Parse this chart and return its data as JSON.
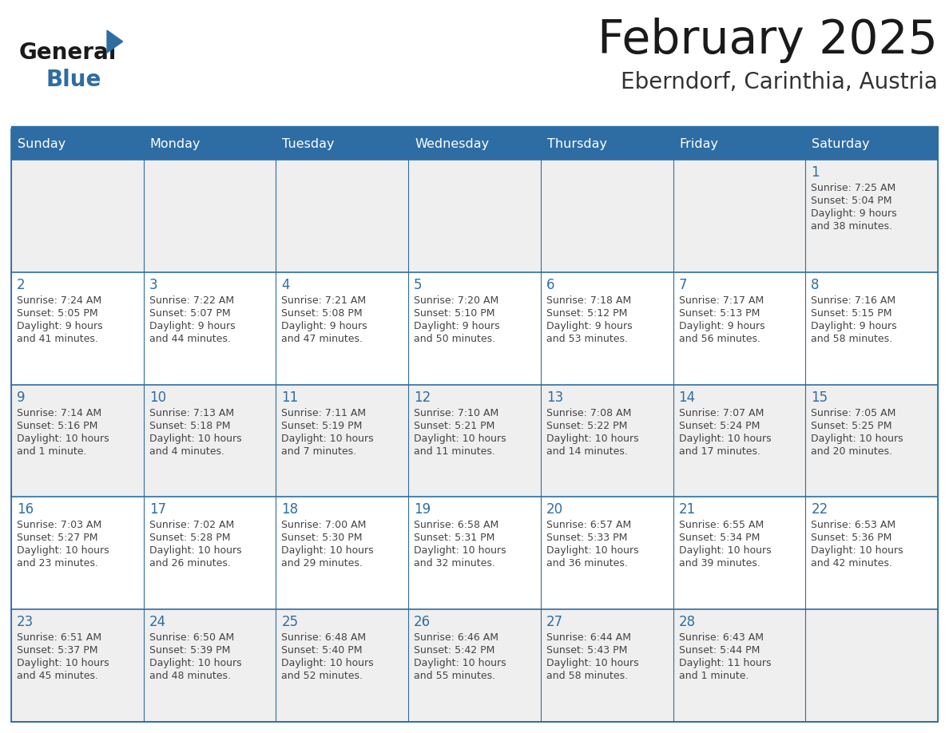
{
  "title": "February 2025",
  "subtitle": "Eberndorf, Carinthia, Austria",
  "header_bg": "#2E6DA4",
  "header_text_color": "#FFFFFF",
  "cell_bg_odd": "#EFEFEF",
  "cell_bg_even": "#FFFFFF",
  "border_color": "#2E6DA4",
  "day_headers": [
    "Sunday",
    "Monday",
    "Tuesday",
    "Wednesday",
    "Thursday",
    "Friday",
    "Saturday"
  ],
  "title_color": "#1a1a1a",
  "subtitle_color": "#333333",
  "day_number_color": "#2E6DA4",
  "info_color": "#444444",
  "logo_general_color": "#1a1a1a",
  "logo_blue_color": "#2E6DA4",
  "logo_triangle_color": "#2E6DA4",
  "days": [
    {
      "day": 1,
      "col": 6,
      "row": 0,
      "sunrise": "7:25 AM",
      "sunset": "5:04 PM",
      "daylight_line1": "Daylight: 9 hours",
      "daylight_line2": "and 38 minutes."
    },
    {
      "day": 2,
      "col": 0,
      "row": 1,
      "sunrise": "7:24 AM",
      "sunset": "5:05 PM",
      "daylight_line1": "Daylight: 9 hours",
      "daylight_line2": "and 41 minutes."
    },
    {
      "day": 3,
      "col": 1,
      "row": 1,
      "sunrise": "7:22 AM",
      "sunset": "5:07 PM",
      "daylight_line1": "Daylight: 9 hours",
      "daylight_line2": "and 44 minutes."
    },
    {
      "day": 4,
      "col": 2,
      "row": 1,
      "sunrise": "7:21 AM",
      "sunset": "5:08 PM",
      "daylight_line1": "Daylight: 9 hours",
      "daylight_line2": "and 47 minutes."
    },
    {
      "day": 5,
      "col": 3,
      "row": 1,
      "sunrise": "7:20 AM",
      "sunset": "5:10 PM",
      "daylight_line1": "Daylight: 9 hours",
      "daylight_line2": "and 50 minutes."
    },
    {
      "day": 6,
      "col": 4,
      "row": 1,
      "sunrise": "7:18 AM",
      "sunset": "5:12 PM",
      "daylight_line1": "Daylight: 9 hours",
      "daylight_line2": "and 53 minutes."
    },
    {
      "day": 7,
      "col": 5,
      "row": 1,
      "sunrise": "7:17 AM",
      "sunset": "5:13 PM",
      "daylight_line1": "Daylight: 9 hours",
      "daylight_line2": "and 56 minutes."
    },
    {
      "day": 8,
      "col": 6,
      "row": 1,
      "sunrise": "7:16 AM",
      "sunset": "5:15 PM",
      "daylight_line1": "Daylight: 9 hours",
      "daylight_line2": "and 58 minutes."
    },
    {
      "day": 9,
      "col": 0,
      "row": 2,
      "sunrise": "7:14 AM",
      "sunset": "5:16 PM",
      "daylight_line1": "Daylight: 10 hours",
      "daylight_line2": "and 1 minute."
    },
    {
      "day": 10,
      "col": 1,
      "row": 2,
      "sunrise": "7:13 AM",
      "sunset": "5:18 PM",
      "daylight_line1": "Daylight: 10 hours",
      "daylight_line2": "and 4 minutes."
    },
    {
      "day": 11,
      "col": 2,
      "row": 2,
      "sunrise": "7:11 AM",
      "sunset": "5:19 PM",
      "daylight_line1": "Daylight: 10 hours",
      "daylight_line2": "and 7 minutes."
    },
    {
      "day": 12,
      "col": 3,
      "row": 2,
      "sunrise": "7:10 AM",
      "sunset": "5:21 PM",
      "daylight_line1": "Daylight: 10 hours",
      "daylight_line2": "and 11 minutes."
    },
    {
      "day": 13,
      "col": 4,
      "row": 2,
      "sunrise": "7:08 AM",
      "sunset": "5:22 PM",
      "daylight_line1": "Daylight: 10 hours",
      "daylight_line2": "and 14 minutes."
    },
    {
      "day": 14,
      "col": 5,
      "row": 2,
      "sunrise": "7:07 AM",
      "sunset": "5:24 PM",
      "daylight_line1": "Daylight: 10 hours",
      "daylight_line2": "and 17 minutes."
    },
    {
      "day": 15,
      "col": 6,
      "row": 2,
      "sunrise": "7:05 AM",
      "sunset": "5:25 PM",
      "daylight_line1": "Daylight: 10 hours",
      "daylight_line2": "and 20 minutes."
    },
    {
      "day": 16,
      "col": 0,
      "row": 3,
      "sunrise": "7:03 AM",
      "sunset": "5:27 PM",
      "daylight_line1": "Daylight: 10 hours",
      "daylight_line2": "and 23 minutes."
    },
    {
      "day": 17,
      "col": 1,
      "row": 3,
      "sunrise": "7:02 AM",
      "sunset": "5:28 PM",
      "daylight_line1": "Daylight: 10 hours",
      "daylight_line2": "and 26 minutes."
    },
    {
      "day": 18,
      "col": 2,
      "row": 3,
      "sunrise": "7:00 AM",
      "sunset": "5:30 PM",
      "daylight_line1": "Daylight: 10 hours",
      "daylight_line2": "and 29 minutes."
    },
    {
      "day": 19,
      "col": 3,
      "row": 3,
      "sunrise": "6:58 AM",
      "sunset": "5:31 PM",
      "daylight_line1": "Daylight: 10 hours",
      "daylight_line2": "and 32 minutes."
    },
    {
      "day": 20,
      "col": 4,
      "row": 3,
      "sunrise": "6:57 AM",
      "sunset": "5:33 PM",
      "daylight_line1": "Daylight: 10 hours",
      "daylight_line2": "and 36 minutes."
    },
    {
      "day": 21,
      "col": 5,
      "row": 3,
      "sunrise": "6:55 AM",
      "sunset": "5:34 PM",
      "daylight_line1": "Daylight: 10 hours",
      "daylight_line2": "and 39 minutes."
    },
    {
      "day": 22,
      "col": 6,
      "row": 3,
      "sunrise": "6:53 AM",
      "sunset": "5:36 PM",
      "daylight_line1": "Daylight: 10 hours",
      "daylight_line2": "and 42 minutes."
    },
    {
      "day": 23,
      "col": 0,
      "row": 4,
      "sunrise": "6:51 AM",
      "sunset": "5:37 PM",
      "daylight_line1": "Daylight: 10 hours",
      "daylight_line2": "and 45 minutes."
    },
    {
      "day": 24,
      "col": 1,
      "row": 4,
      "sunrise": "6:50 AM",
      "sunset": "5:39 PM",
      "daylight_line1": "Daylight: 10 hours",
      "daylight_line2": "and 48 minutes."
    },
    {
      "day": 25,
      "col": 2,
      "row": 4,
      "sunrise": "6:48 AM",
      "sunset": "5:40 PM",
      "daylight_line1": "Daylight: 10 hours",
      "daylight_line2": "and 52 minutes."
    },
    {
      "day": 26,
      "col": 3,
      "row": 4,
      "sunrise": "6:46 AM",
      "sunset": "5:42 PM",
      "daylight_line1": "Daylight: 10 hours",
      "daylight_line2": "and 55 minutes."
    },
    {
      "day": 27,
      "col": 4,
      "row": 4,
      "sunrise": "6:44 AM",
      "sunset": "5:43 PM",
      "daylight_line1": "Daylight: 10 hours",
      "daylight_line2": "and 58 minutes."
    },
    {
      "day": 28,
      "col": 5,
      "row": 4,
      "sunrise": "6:43 AM",
      "sunset": "5:44 PM",
      "daylight_line1": "Daylight: 11 hours",
      "daylight_line2": "and 1 minute."
    }
  ]
}
